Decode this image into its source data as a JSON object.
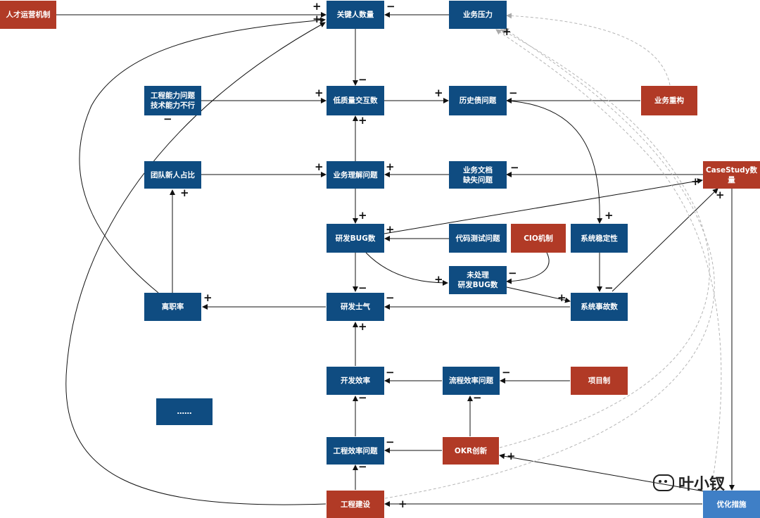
{
  "nodes": {
    "talent_mechanism": "人才运营机制",
    "key_people": "关键人数量",
    "business_pressure": "业务压力",
    "eng_capability": "工程能力问题\n技术能力不行",
    "low_quality": "低质量交互数",
    "tech_debt": "历史债问题",
    "restructure": "业务重构",
    "team_new_ratio": "团队新人占比",
    "business_understanding": "业务理解问题",
    "business_docs": "业务文档\n缺失问题",
    "casestudy": "CaseStudy数量",
    "dev_bugs": "研发BUG数",
    "code_test": "代码测试问题",
    "cio": "CIO机制",
    "stability": "系统稳定性",
    "unresolved_bugs": "未处理\n研发BUG数",
    "turnover": "离职率",
    "morale": "研发士气",
    "incidents": "系统事故数",
    "dev_efficiency": "开发效率",
    "process_efficiency": "流程效率问题",
    "project_system": "项目制",
    "more": "……",
    "eng_efficiency": "工程效率问题",
    "okr": "OKR创新",
    "eng_construction": "工程建设",
    "optimize": "优化措施"
  },
  "signs": {
    "plus": "+",
    "minus": "−"
  },
  "watermark": {
    "text": "叶小钗",
    "icon": "wechat-icon"
  },
  "colors": {
    "blue": "#0f4c81",
    "red": "#b13a26",
    "light_blue": "#3f7fc6"
  }
}
